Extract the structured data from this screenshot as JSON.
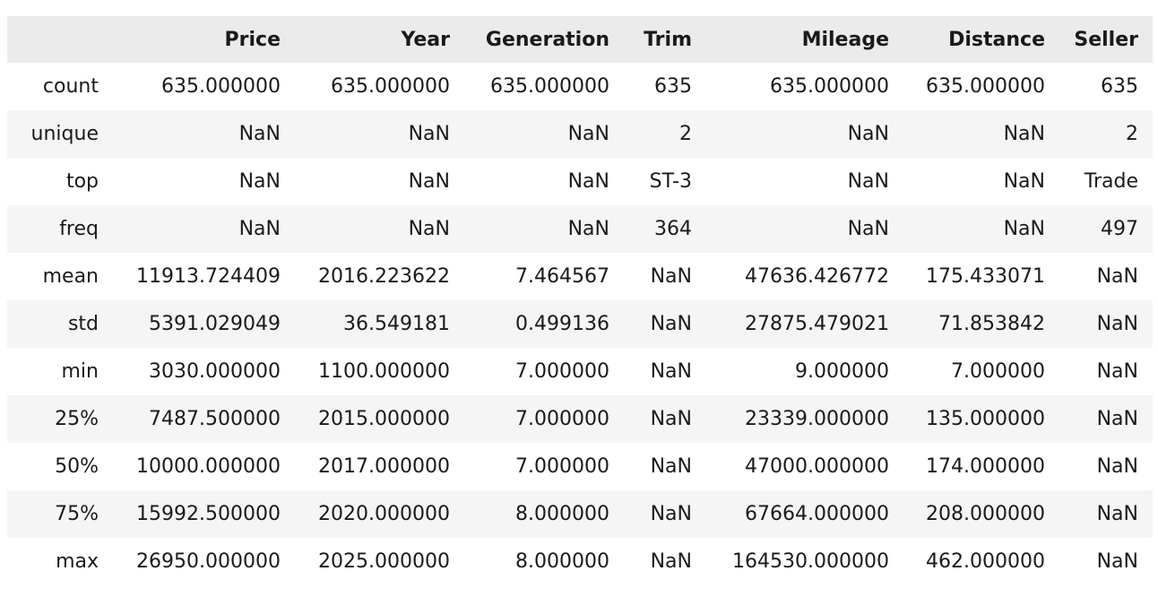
{
  "table": {
    "index_header": "",
    "columns": [
      "Price",
      "Year",
      "Generation",
      "Trim",
      "Mileage",
      "Distance",
      "Seller"
    ],
    "rows": [
      {
        "label": "count",
        "cells": [
          "635.000000",
          "635.000000",
          "635.000000",
          "635",
          "635.000000",
          "635.000000",
          "635"
        ]
      },
      {
        "label": "unique",
        "cells": [
          "NaN",
          "NaN",
          "NaN",
          "2",
          "NaN",
          "NaN",
          "2"
        ]
      },
      {
        "label": "top",
        "cells": [
          "NaN",
          "NaN",
          "NaN",
          "ST-3",
          "NaN",
          "NaN",
          "Trade"
        ]
      },
      {
        "label": "freq",
        "cells": [
          "NaN",
          "NaN",
          "NaN",
          "364",
          "NaN",
          "NaN",
          "497"
        ]
      },
      {
        "label": "mean",
        "cells": [
          "11913.724409",
          "2016.223622",
          "7.464567",
          "NaN",
          "47636.426772",
          "175.433071",
          "NaN"
        ]
      },
      {
        "label": "std",
        "cells": [
          "5391.029049",
          "36.549181",
          "0.499136",
          "NaN",
          "27875.479021",
          "71.853842",
          "NaN"
        ]
      },
      {
        "label": "min",
        "cells": [
          "3030.000000",
          "1100.000000",
          "7.000000",
          "NaN",
          "9.000000",
          "7.000000",
          "NaN"
        ]
      },
      {
        "label": "25%",
        "cells": [
          "7487.500000",
          "2015.000000",
          "7.000000",
          "NaN",
          "23339.000000",
          "135.000000",
          "NaN"
        ]
      },
      {
        "label": "50%",
        "cells": [
          "10000.000000",
          "2017.000000",
          "7.000000",
          "NaN",
          "47000.000000",
          "174.000000",
          "NaN"
        ]
      },
      {
        "label": "75%",
        "cells": [
          "15992.500000",
          "2020.000000",
          "8.000000",
          "NaN",
          "67664.000000",
          "208.000000",
          "NaN"
        ]
      },
      {
        "label": "max",
        "cells": [
          "26950.000000",
          "2025.000000",
          "8.000000",
          "NaN",
          "164530.000000",
          "462.000000",
          "NaN"
        ]
      }
    ]
  },
  "colors": {
    "header_background": "#ebebeb",
    "striped_row_background": "#f5f5f5",
    "row_background": "#ffffff",
    "text": "#1a1a1a"
  }
}
